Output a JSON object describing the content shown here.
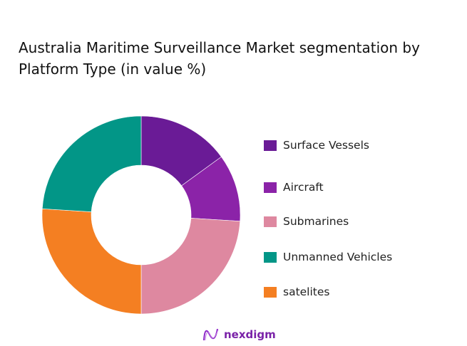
{
  "chart_data": {
    "type": "pie",
    "donut": true,
    "title": "Australia Maritime Surveillance Market segmentation by Platform Type (in value %)",
    "categories": [
      "Surface Vessels",
      "Aircraft",
      "Submarines",
      "Unmanned Vehicles",
      "satelites"
    ],
    "values": [
      15,
      11,
      24,
      24,
      26
    ],
    "slice_order_clockwise_from_top": [
      "Surface Vessels",
      "Aircraft",
      "Submarines",
      "satelites",
      "Unmanned Vehicles"
    ],
    "colors": {
      "Surface Vessels": "#6a1b96",
      "Aircraft": "#8b23a8",
      "Submarines": "#de88a0",
      "Unmanned Vehicles": "#029687",
      "satelites": "#f47f22"
    },
    "legend_placement": "right"
  },
  "branding": {
    "logo_text": "nexdigm"
  }
}
